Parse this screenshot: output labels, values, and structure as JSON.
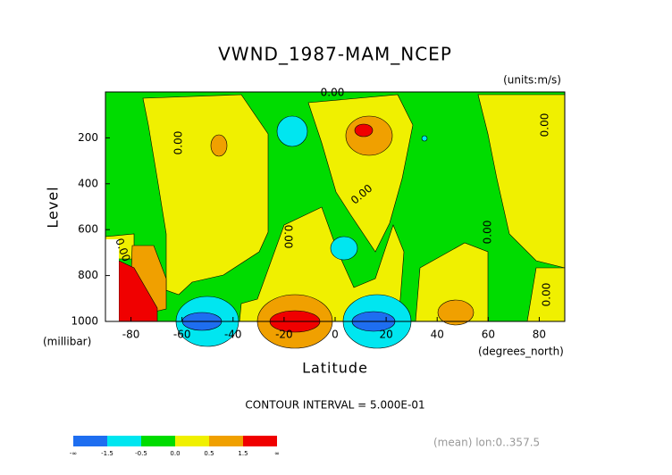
{
  "chart_data": {
    "type": "contour",
    "title": "VWND_1987-MAM_NCEP",
    "units_label": "(units:m/s)",
    "x_label": "Latitude",
    "x_units": "(degrees_north)",
    "y_label": "Level",
    "y_units": "(millibar)",
    "xlim": [
      -90,
      90
    ],
    "xticks": [
      -80,
      -60,
      -40,
      -20,
      0,
      20,
      40,
      60,
      80
    ],
    "ylim": [
      1000,
      0
    ],
    "yticks": [
      200,
      400,
      600,
      800,
      1000
    ],
    "contour_label": "0.00",
    "contour_interval": "CONTOUR INTERVAL = 5.000E-01",
    "footer": "(mean) lon:0..357.5",
    "colorbar": {
      "colors": [
        "#1e6ef0",
        "#00e6f0",
        "#00dc00",
        "#f0f000",
        "#f0a000",
        "#f00000"
      ],
      "labels": [
        "-∞",
        "-1.5",
        "-0.5",
        "0.0",
        "0.5",
        "1.5",
        "∞"
      ]
    }
  }
}
